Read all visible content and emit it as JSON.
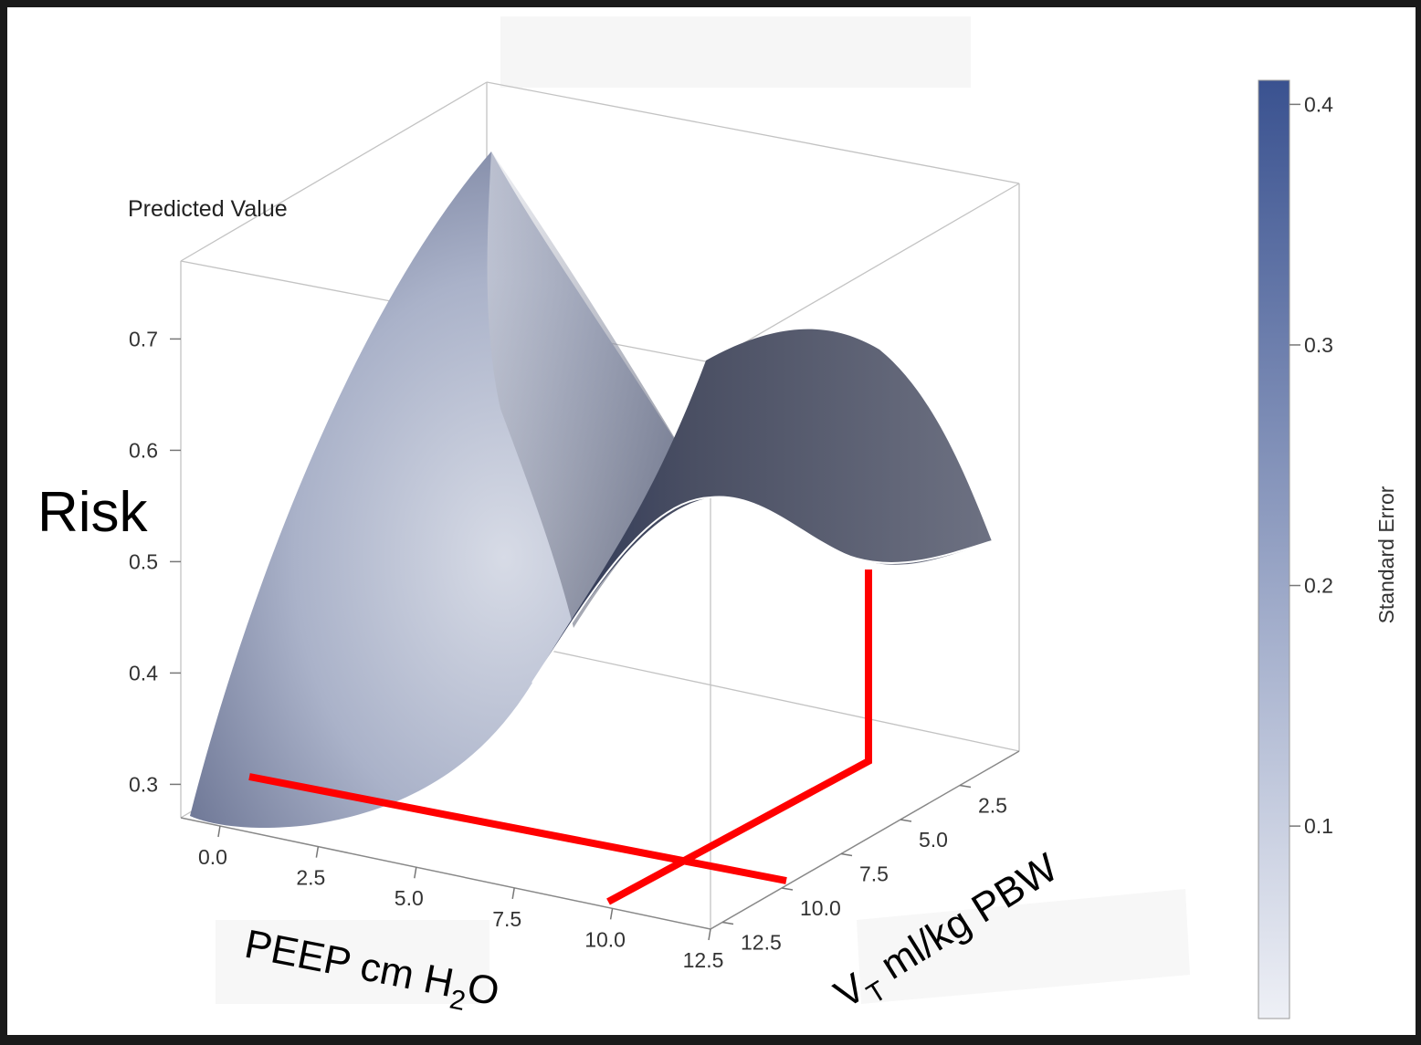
{
  "chart_data": {
    "type": "surface",
    "z_axis_title": "Predicted Value",
    "z_label": "Risk",
    "x_label": "PEEP cm H",
    "x_label_sub": "2",
    "x_label_tail": "O",
    "y_label_main": "V",
    "y_label_sub": "T",
    "y_label_tail": " ml/kg PBW",
    "x_ticks": [
      "0.0",
      "2.5",
      "5.0",
      "7.5",
      "10.0",
      "12.5"
    ],
    "y_ticks": [
      "2.5",
      "5.0",
      "7.5",
      "10.0",
      "12.5"
    ],
    "z_ticks": [
      "0.3",
      "0.4",
      "0.5",
      "0.6",
      "0.7"
    ],
    "x_range": [
      -1,
      12.5
    ],
    "y_range": [
      0,
      13
    ],
    "z_range": [
      0.27,
      0.77
    ],
    "colorbar": {
      "label": "Standard Error",
      "ticks": [
        "0.1",
        "0.2",
        "0.3",
        "0.4"
      ],
      "range": [
        0.02,
        0.41
      ],
      "color_low": "#eef0f6",
      "color_high": "#3a5290"
    },
    "highlight": {
      "color": "#ff0000",
      "peep_line_y": 0.3,
      "vt_line_x": 10.3,
      "vertical_top_z": 0.5
    }
  }
}
